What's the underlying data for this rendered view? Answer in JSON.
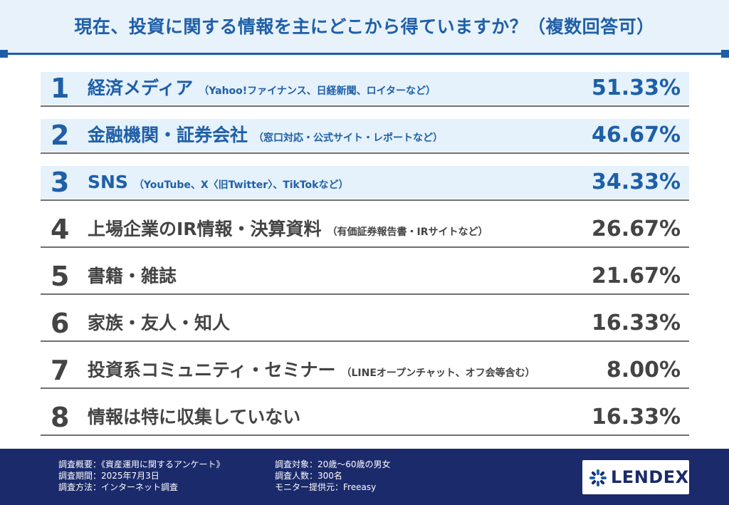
{
  "title": "現在、投資に関する情報を主にどこから得ていますか？（複数回答可）",
  "accent_color": "#1e5fa8",
  "highlight_bg": "#e5f1fb",
  "chart_data": {
    "type": "table",
    "title": "現在、投資に関する情報を主にどこから得ていますか？（複数回答可）",
    "rows": [
      {
        "rank": "1",
        "label": "経済メディア",
        "note": "（Yahoo!ファイナンス、日経新聞、ロイターなど）",
        "value_text": "51.33%",
        "value": 51.33,
        "highlight": true
      },
      {
        "rank": "2",
        "label": "金融機関・証券会社",
        "note": "（窓口対応・公式サイト・レポートなど）",
        "value_text": "46.67%",
        "value": 46.67,
        "highlight": true
      },
      {
        "rank": "3",
        "label": "SNS",
        "note": "（YouTube、X〈旧Twitter〉、TikTokなど）",
        "value_text": "34.33%",
        "value": 34.33,
        "highlight": true
      },
      {
        "rank": "4",
        "label": "上場企業のIR情報・決算資料",
        "note": "（有価証券報告書・IRサイトなど）",
        "value_text": "26.67%",
        "value": 26.67,
        "highlight": false
      },
      {
        "rank": "5",
        "label": "書籍・雑誌",
        "note": "",
        "value_text": "21.67%",
        "value": 21.67,
        "highlight": false
      },
      {
        "rank": "6",
        "label": "家族・友人・知人",
        "note": "",
        "value_text": "16.33%",
        "value": 16.33,
        "highlight": false
      },
      {
        "rank": "7",
        "label": "投資系コミュニティ・セミナー",
        "note": "（LINEオープンチャット、オフ会等含む）",
        "value_text": "8.00%",
        "value": 8.0,
        "highlight": false
      },
      {
        "rank": "8",
        "label": "情報は特に収集していない",
        "note": "",
        "value_text": "16.33%",
        "value": 16.33,
        "highlight": false
      }
    ]
  },
  "footer": {
    "col1": [
      "調査概要：《資産運用に関するアンケート》",
      "調査期間：2025年7月3日",
      "調査方法：インターネット調査"
    ],
    "col2": [
      "調査対象：20歳〜60歳の男女",
      "調査人数：300名",
      "モニター提供元：Freeasy"
    ],
    "logo_text": "LENDEX",
    "logo_icon": "lendex-star-icon"
  }
}
